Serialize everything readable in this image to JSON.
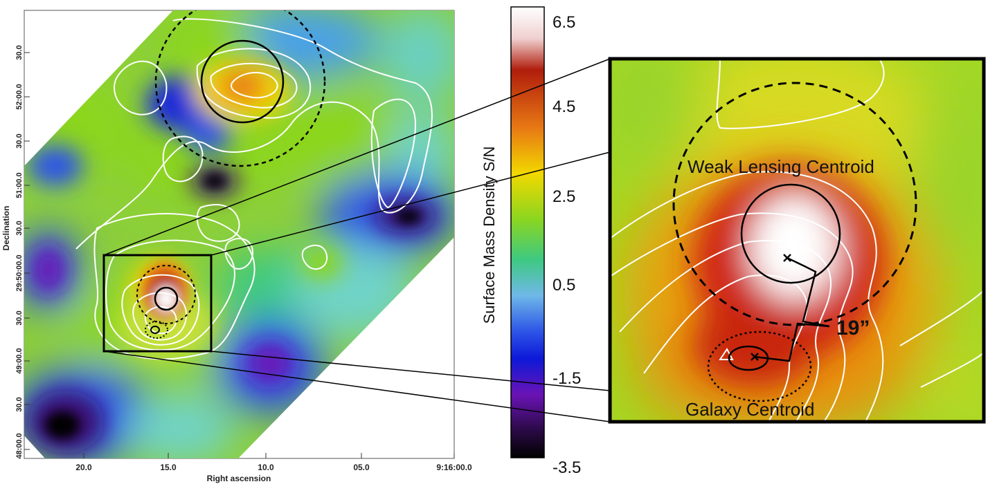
{
  "left_map": {
    "xlabel": "Right ascension",
    "ylabel": "Declination",
    "ra_ticks": [
      "20.0",
      "15.0",
      "10.0",
      "05.0",
      "9:16:00.0"
    ],
    "dec_ticks": [
      "30.0",
      "52:00.0",
      "30.0",
      "51:00.0",
      "30.0",
      "29:50:00.0",
      "30.0",
      "49:00.0",
      "30.0",
      "48:00.0"
    ]
  },
  "colorbar": {
    "label": "Surface Mass Density S/N",
    "ticks": [
      "6.5",
      "4.5",
      "2.5",
      "0.5",
      "-1.5",
      "-3.5"
    ],
    "min": -3.5,
    "max": 6.5
  },
  "zoom": {
    "weak_lensing_label": "Weak Lensing Centroid",
    "galaxy_label": "Galaxy Centroid",
    "offset_label": "19”"
  },
  "colors": {
    "frame": "#000000",
    "contour": "#ffffff",
    "cmap_white": "#ffffff",
    "cmap_red": "#b01d0c",
    "cmap_yellow": "#f2d800",
    "cmap_green": "#8cd61f",
    "cmap_cyan": "#6fd3c8",
    "cmap_blue": "#2d55e6",
    "cmap_purple": "#6a13b5",
    "cmap_black": "#000000"
  }
}
